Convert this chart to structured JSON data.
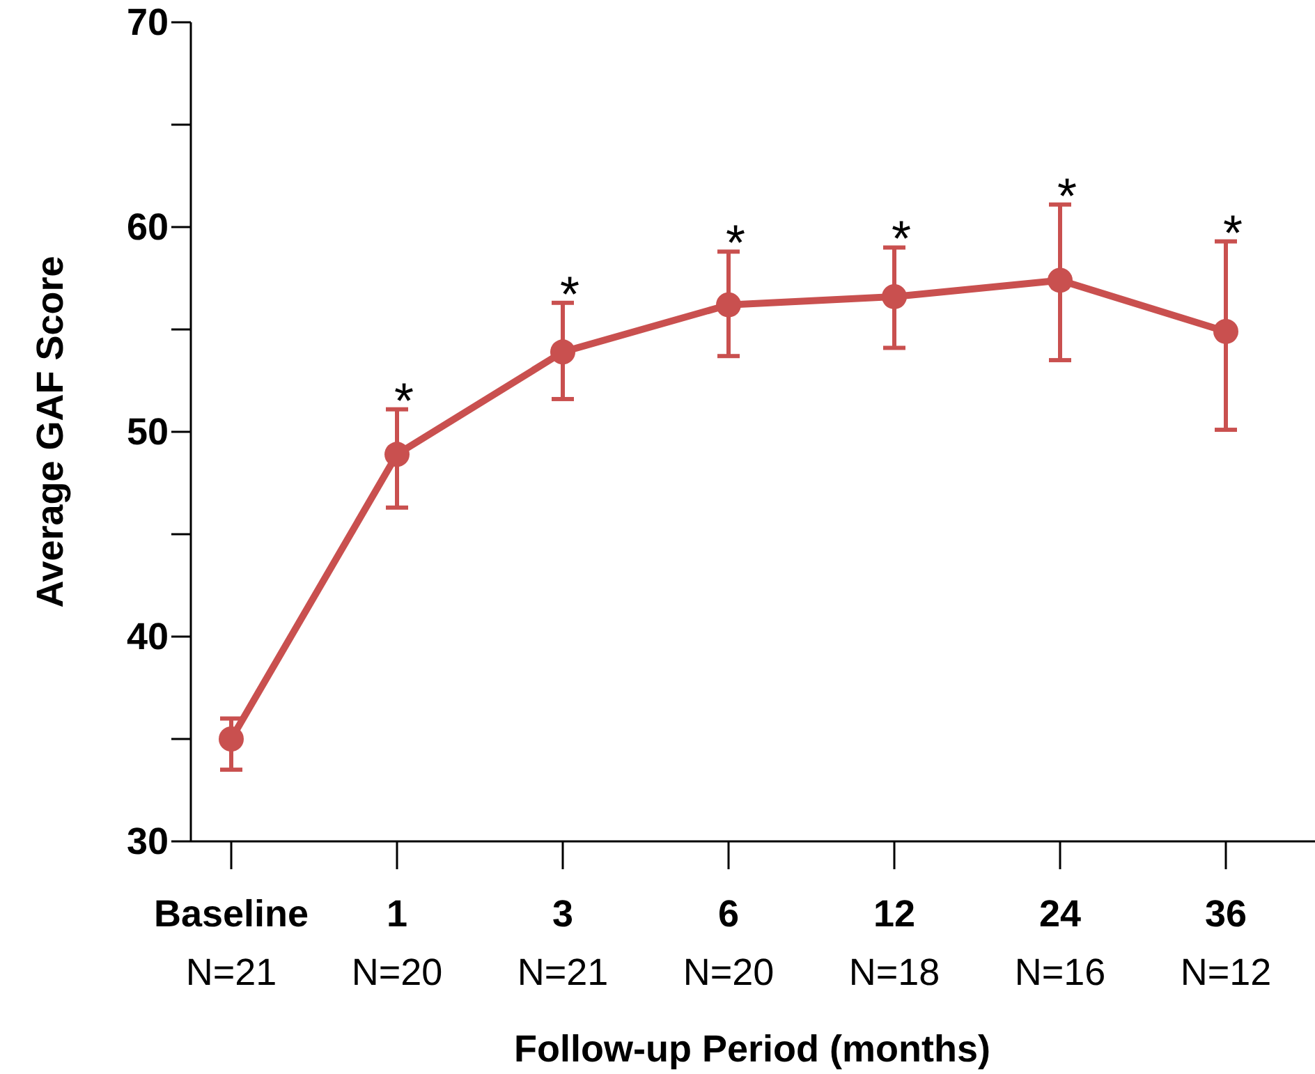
{
  "chart_data": {
    "type": "line",
    "xlabel": "Follow-up Period (months)",
    "ylabel": "Average GAF Score",
    "categories": [
      "Baseline\nN=21",
      "1\nN=20",
      "3\nN=21",
      "6\nN=20",
      "12\nN=18",
      "24\nN=16",
      "36\nN=12"
    ],
    "series": [
      {
        "color": "#c9504f",
        "values": [
          35.0,
          48.9,
          53.9,
          56.2,
          56.6,
          57.4,
          54.9
        ],
        "errors": [
          [
            33.5,
            36.0
          ],
          [
            46.3,
            51.1
          ],
          [
            51.6,
            56.3
          ],
          [
            53.7,
            58.8
          ],
          [
            54.1,
            59.0
          ],
          [
            53.5,
            61.1
          ],
          [
            50.1,
            59.3
          ]
        ]
      }
    ],
    "ylim": [
      30,
      70
    ],
    "yticks": [
      30,
      {
        "value": 35,
        "label": null
      },
      40,
      {
        "value": 45,
        "label": null
      },
      50,
      {
        "value": 55,
        "label": null
      },
      60,
      {
        "value": 65,
        "label": null
      },
      70
    ],
    "marker": "circle",
    "line_style": "solid",
    "grid": false,
    "annotations": [
      {
        "text": "*",
        "x": "1\nN=20",
        "y": 51.1
      },
      {
        "text": "*",
        "x": "3\nN=21",
        "y": 56.3
      },
      {
        "text": "*",
        "x": "6\nN=20",
        "y": 58.8
      },
      {
        "text": "*",
        "x": "12\nN=18",
        "y": 59.0
      },
      {
        "text": "*",
        "x": "24\nN=16",
        "y": 61.1
      },
      {
        "text": "*",
        "x": "36\nN=12",
        "y": 59.3
      }
    ]
  }
}
